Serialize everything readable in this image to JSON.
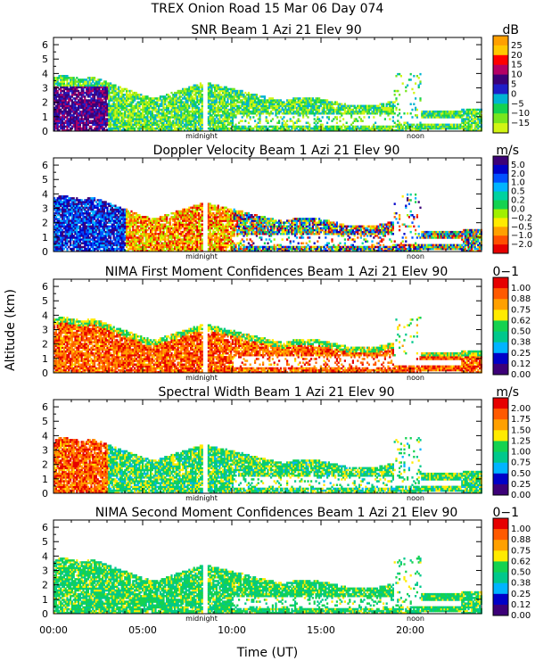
{
  "header": {
    "line1": "TREX Onion Road  15 Mar 06 Day 074"
  },
  "chart_data": {
    "type": "heatmap",
    "shared_x": {
      "label": "Time (UT)",
      "range": [
        0,
        24
      ],
      "ticks": [
        0,
        5,
        10,
        15,
        20
      ],
      "tick_labels": [
        "00:00",
        "05:00",
        "10:00",
        "15:00",
        "20:00"
      ],
      "annotations": [
        {
          "text": "midnight",
          "x": 8.3
        },
        {
          "text": "noon",
          "x": 20.3
        }
      ]
    },
    "shared_y": {
      "label": "Altitude (km)",
      "range": [
        0,
        6.5
      ],
      "ticks": [
        0,
        1,
        2,
        3,
        4,
        5,
        6
      ],
      "tick_labels": [
        "0",
        "1",
        "2",
        "3",
        "4",
        "5",
        "6"
      ]
    },
    "panels": [
      {
        "title": "SNR Beam 1 Azi  21 Elev 90",
        "unit": "dB",
        "colorbar_labels": [
          "25",
          "20",
          "15",
          "10",
          "5",
          "0",
          "−5",
          "−10",
          "−15"
        ],
        "colors": [
          "#ffa000",
          "#ffc800",
          "#ff0000",
          "#b40064",
          "#3c0078",
          "#1e1ec8",
          "#00b4d2",
          "#14d250",
          "#78e61e",
          "#d2f514"
        ]
      },
      {
        "title": "Doppler Velocity Beam 1 Azi  21 Elev 90",
        "unit": "m/s",
        "colorbar_labels": [
          "5.0",
          "2.0",
          "1.0",
          "0.5",
          "0.2",
          "0.0",
          "−0.2",
          "−0.5",
          "−1.0",
          "−2.0"
        ],
        "colors": [
          "#3c0078",
          "#0000c8",
          "#0050ff",
          "#00b4ff",
          "#00d2a0",
          "#14d250",
          "#a0f000",
          "#ffeb00",
          "#ffa000",
          "#ff5000",
          "#e60000"
        ]
      },
      {
        "title": "NIMA First Moment Confidences Beam 1 Azi  21 Elev 90",
        "unit": "0−1",
        "colorbar_labels": [
          "1.00",
          "0.88",
          "0.75",
          "0.62",
          "0.50",
          "0.38",
          "0.25",
          "0.12",
          "0.00"
        ],
        "colors": [
          "#e60000",
          "#ff5a00",
          "#ffa000",
          "#ffeb00",
          "#14d250",
          "#00c88c",
          "#00b4ff",
          "#0000c8",
          "#3c0078"
        ]
      },
      {
        "title": "Spectral Width Beam 1 Azi  21 Elev 90",
        "unit": "m/s",
        "colorbar_labels": [
          "2.00",
          "1.75",
          "1.50",
          "1.25",
          "1.00",
          "0.75",
          "0.50",
          "0.25",
          "0.00"
        ],
        "colors": [
          "#e60000",
          "#ff5a00",
          "#ffa000",
          "#ffeb00",
          "#14d250",
          "#00c88c",
          "#00b4ff",
          "#0000c8",
          "#3c0078"
        ]
      },
      {
        "title": "NIMA Second Moment Confidences Beam 1 Azi  21 Elev 90",
        "unit": "0−1",
        "colorbar_labels": [
          "1.00",
          "0.88",
          "0.75",
          "0.62",
          "0.50",
          "0.38",
          "0.25",
          "0.12",
          "0.00"
        ],
        "colors": [
          "#e60000",
          "#ff5a00",
          "#ffa000",
          "#ffeb00",
          "#14d250",
          "#00c88c",
          "#00b4ff",
          "#0000c8",
          "#3c0078"
        ]
      }
    ]
  }
}
